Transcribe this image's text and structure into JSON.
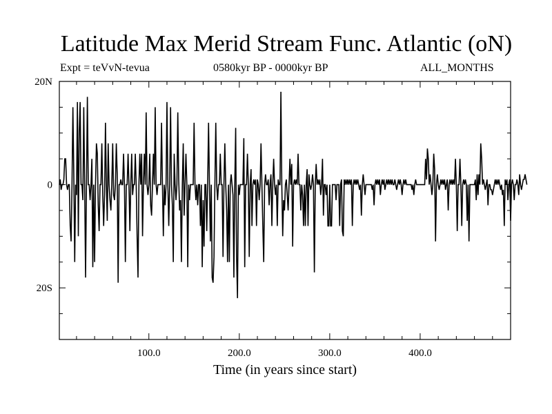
{
  "chart_data": {
    "type": "line",
    "title": "Latitude Max Merid Stream Func. Atlantic (oN)",
    "experiment": "Expt = teVvN-tevua",
    "period": "0580kyr BP - 0000kyr BP",
    "months": "ALL_MONTHS",
    "xlabel": "Time (in years since start)",
    "ylabel": "",
    "xlim": [
      1,
      500
    ],
    "ylim": [
      -30,
      20
    ],
    "x_ticks": [
      {
        "value": 100,
        "label": "100.0"
      },
      {
        "value": 200,
        "label": "200.0"
      },
      {
        "value": 300,
        "label": "300.0"
      },
      {
        "value": 400,
        "label": "400.0"
      }
    ],
    "y_ticks": [
      {
        "value": 20,
        "label": "20N"
      },
      {
        "value": 0,
        "label": "0"
      },
      {
        "value": -20,
        "label": "20S"
      }
    ],
    "series": [
      {
        "x_start": 1,
        "x_step": 1,
        "values": [
          0,
          1,
          -1,
          0,
          0,
          1,
          5,
          5,
          0,
          -1,
          0,
          0,
          -8,
          -11,
          0,
          15,
          2,
          -15,
          0,
          -2,
          16,
          -10,
          10,
          16,
          0,
          0,
          -3,
          15,
          0,
          -18,
          0,
          17,
          0,
          0,
          -3,
          0,
          5,
          -16,
          0,
          -15,
          0,
          8,
          6,
          -4,
          -9,
          0,
          0,
          8,
          -2,
          -8,
          -2,
          12,
          0,
          -7,
          8,
          0,
          -3,
          -5,
          0,
          8,
          -2,
          -3,
          0,
          8,
          2,
          -19,
          0,
          0,
          1,
          0,
          0,
          6,
          0,
          -15,
          0,
          0,
          6,
          0,
          -9,
          0,
          6,
          -2,
          0,
          0,
          6,
          0,
          -10,
          -18,
          0,
          6,
          0,
          6,
          -10,
          0,
          6,
          0,
          14,
          0,
          -2,
          0,
          6,
          -4,
          -6,
          0,
          6,
          0,
          15,
          0,
          -2,
          0,
          0,
          0,
          0,
          12,
          0,
          -10,
          0,
          -4,
          0,
          16,
          0,
          -8,
          0,
          15,
          0,
          -4,
          -15,
          6,
          0,
          -3,
          0,
          14,
          1,
          -5,
          -3,
          -15,
          0,
          8,
          -6,
          0,
          6,
          0,
          -16,
          0,
          -3,
          0,
          0,
          0,
          0,
          12,
          0,
          -3,
          0,
          -4,
          0,
          0,
          -8,
          0,
          -16,
          -3,
          -12,
          0,
          0,
          -9,
          0,
          12,
          0,
          -11,
          0,
          -18,
          -19,
          -14,
          0,
          12,
          0,
          -3,
          0,
          0,
          6,
          0,
          0,
          -14,
          0,
          8,
          0,
          -5,
          -15,
          0,
          -15,
          0,
          2,
          0,
          -2,
          -18,
          0,
          11,
          -14,
          -22,
          0,
          -2,
          0,
          0,
          0,
          0,
          9,
          -16,
          0,
          0,
          6,
          0,
          -14,
          0,
          3,
          -8,
          0,
          1,
          0,
          1,
          -8,
          1,
          0,
          -3,
          0,
          8,
          0,
          -8,
          -15,
          0,
          2,
          0,
          0,
          1,
          -4,
          0,
          2,
          -8,
          0,
          5,
          0,
          -2,
          0,
          -8,
          1,
          0,
          0,
          18,
          0,
          -10,
          -3,
          -5,
          0,
          1,
          -2,
          -5,
          0,
          5,
          0,
          4,
          -12,
          0,
          1,
          0,
          1,
          0,
          6,
          0,
          0,
          -5,
          0,
          -2,
          -8,
          0,
          -8,
          0,
          3,
          -8,
          2,
          0,
          -1,
          0,
          2,
          0,
          -17,
          0,
          4,
          0,
          1,
          0,
          1,
          -2,
          0,
          5,
          -6,
          0,
          0,
          -2,
          0,
          -8,
          -8,
          0,
          -8,
          -8,
          0,
          0,
          0,
          0,
          -3,
          0,
          0,
          0,
          -8,
          0,
          1,
          -9,
          -10,
          1,
          0,
          1,
          0,
          1,
          0,
          1,
          0,
          1,
          -8,
          0,
          1,
          0,
          1,
          0,
          1,
          0,
          -1,
          0,
          -6,
          0,
          2,
          0,
          -2,
          0,
          0,
          0,
          0,
          0,
          0,
          0,
          -1,
          0,
          -4,
          0,
          1,
          0,
          1,
          0,
          1,
          -2,
          0,
          1,
          0,
          1,
          -1,
          0,
          1,
          0,
          1,
          0,
          1,
          0,
          1,
          0,
          0,
          1,
          0,
          -1,
          0,
          1,
          0,
          1,
          0,
          -2,
          0,
          1,
          0,
          1,
          0,
          0,
          0,
          0,
          0,
          0,
          -1,
          0,
          -2,
          0,
          1,
          0,
          0,
          0,
          0,
          0,
          0,
          0,
          0,
          0,
          0,
          5,
          1,
          7,
          5,
          0,
          2,
          0,
          -2,
          0,
          6,
          3,
          -11,
          0,
          2,
          0,
          -1,
          0,
          1,
          0,
          1,
          0,
          1,
          -1,
          0,
          1,
          -5,
          0,
          1,
          0,
          1,
          0,
          1,
          0,
          5,
          0,
          -9,
          0,
          0,
          5,
          0,
          -8,
          0,
          1,
          0,
          1,
          0,
          -7,
          0,
          -11,
          0,
          0,
          0,
          0,
          0,
          0,
          1,
          -3,
          2,
          -2,
          2,
          0,
          8,
          5,
          0,
          1,
          0,
          -1,
          0,
          1,
          -4,
          0,
          0,
          -1,
          -1,
          -2,
          -1,
          0,
          1,
          0,
          1,
          0,
          1,
          0,
          -1,
          0,
          -2,
          -1,
          -8,
          1,
          0,
          1,
          -3,
          0,
          1,
          -7,
          0,
          1,
          0,
          -3,
          0,
          0,
          1,
          0,
          -2,
          2,
          0,
          -1,
          0,
          1,
          1,
          2,
          1,
          0
        ]
      }
    ],
    "colors": {
      "line": "#000000",
      "axis": "#000000",
      "background": "#ffffff"
    }
  }
}
